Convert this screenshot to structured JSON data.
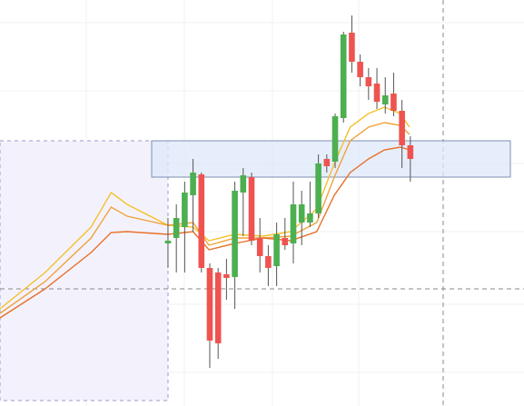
{
  "chart_data": {
    "type": "candlestick",
    "xlim": [
      -20.1,
      42.6
    ],
    "ylim": [
      0,
      447
    ],
    "up_color": "#4caf50",
    "down_color": "#ef5350",
    "x": [
      0,
      1,
      2,
      3,
      4,
      5,
      6,
      7,
      8,
      9,
      10,
      11,
      12,
      13,
      14,
      15,
      16,
      17,
      18,
      19,
      20,
      21,
      22,
      23,
      24,
      25,
      26,
      27,
      28,
      29
    ],
    "open": [
      179,
      185,
      197,
      232,
      255,
      152,
      147,
      145,
      142,
      235,
      252,
      185,
      165,
      154,
      185,
      179,
      202,
      202,
      212,
      272,
      269,
      317,
      411,
      379,
      362,
      355,
      332,
      344,
      325,
      287
    ],
    "high": [
      207,
      222,
      247,
      272,
      257,
      157,
      152,
      162,
      247,
      262,
      257,
      207,
      177,
      202,
      207,
      247,
      237,
      247,
      277,
      277,
      322,
      412,
      430,
      387,
      372,
      372,
      362,
      367,
      337,
      297
    ],
    "low": [
      152,
      147,
      147,
      192,
      147,
      42,
      52,
      117,
      107,
      187,
      177,
      147,
      132,
      132,
      172,
      157,
      177,
      197,
      207,
      257,
      262,
      312,
      367,
      352,
      337,
      327,
      322,
      319,
      262,
      247
    ],
    "close": [
      182,
      207,
      235,
      257,
      152,
      72,
      69,
      141,
      237,
      254,
      182,
      165,
      152,
      189,
      177,
      222,
      222,
      212,
      267,
      264,
      319,
      409,
      379,
      362,
      352,
      335,
      342,
      325,
      287,
      272
    ],
    "lines": [
      {
        "color": "#f5c02a",
        "x": [
          -20.1,
          -14.7,
          -9.2,
          -6.8,
          -4.9,
          0,
          3,
          4.9,
          8,
          11.4,
          14.7,
          17.8,
          19.9,
          21.8,
          24,
          25.9,
          27.8,
          28.9
        ],
        "values": [
          107,
          147,
          197,
          235,
          222,
          199,
          197,
          182,
          189,
          187,
          192,
          217,
          267,
          307,
          322,
          329,
          322,
          307
        ]
      },
      {
        "color": "#f0a23a",
        "x": [
          -20.1,
          -14.7,
          -9.2,
          -6.8,
          -4.9,
          0,
          3,
          4.9,
          8,
          11.4,
          14.7,
          17.8,
          19.9,
          21.8,
          24,
          25.9,
          27.8,
          28.9
        ],
        "values": [
          102,
          137,
          185,
          219,
          209,
          199,
          202,
          177,
          185,
          185,
          187,
          202,
          252,
          292,
          307,
          312,
          309,
          299
        ]
      },
      {
        "color": "#e8702a",
        "x": [
          -20.1,
          -14.7,
          -9.2,
          -6.8,
          -4.9,
          0,
          3,
          4.9,
          8,
          11.4,
          14.7,
          17.8,
          19.9,
          21.8,
          24,
          25.9,
          27.8,
          28.9
        ],
        "values": [
          97,
          129,
          169,
          191,
          192,
          189,
          192,
          172,
          179,
          185,
          182,
          192,
          232,
          257,
          272,
          282,
          285,
          282
        ]
      }
    ]
  }
}
